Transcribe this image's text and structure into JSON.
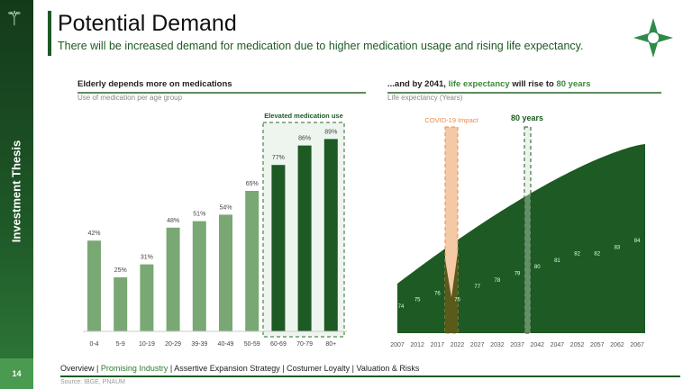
{
  "sidebar": {
    "section": "Investment Thesis",
    "page": "14",
    "logo_icon": "winged-staff-icon"
  },
  "header": {
    "title": "Potential Demand",
    "subtitle": "There will be increased demand for medication due to higher medication usage and rising life expectancy.",
    "brand_icon": "star-cross-logo-icon"
  },
  "left": {
    "heading": "Elderly depends more on medications",
    "caption": "Use of medication per age group",
    "highlight_label": "Elevated medication use"
  },
  "right": {
    "heading_pre": "...and by 2041, ",
    "heading_hl": "life expectancy",
    "heading_mid": " will rise to ",
    "heading_hl2": "80 years",
    "caption": "Life expectancy (Years)",
    "covid_label": "COVID-19 Impact",
    "marker_label": "80 years"
  },
  "chart_data": [
    {
      "type": "bar",
      "categories": [
        "0-4",
        "5-9",
        "10-19",
        "20-29",
        "39-39",
        "40-49",
        "50-59",
        "60-69",
        "70-79",
        "80+"
      ],
      "values": [
        42,
        25,
        31,
        48,
        51,
        54,
        65,
        77,
        86,
        89
      ],
      "unit": "%",
      "highlighted": [
        "60-69",
        "70-79",
        "80+"
      ],
      "colors": {
        "normal": "#7aa874",
        "highlighted": "#1d5a24"
      }
    },
    {
      "type": "area",
      "x": [
        2007,
        2012,
        2017,
        2022,
        2027,
        2032,
        2037,
        2042,
        2047,
        2052,
        2057,
        2062,
        2067
      ],
      "values": [
        74,
        75,
        76,
        75,
        77,
        78,
        79,
        80,
        81,
        82,
        82,
        83,
        84
      ],
      "color": "#1d5a24",
      "annotations": [
        {
          "label": "COVID-19 Impact",
          "x": 2021,
          "color": "#f0a070"
        },
        {
          "label": "80 years",
          "x": 2041
        }
      ]
    }
  ],
  "footer": {
    "nav": [
      {
        "label": "Overview",
        "active": false
      },
      {
        "label": "Promising Industry",
        "active": true
      },
      {
        "label": "Assertive Expansion Strategy",
        "active": false
      },
      {
        "label": "Costumer Loyalty",
        "active": false
      },
      {
        "label": "Valuation & Risks",
        "active": false
      }
    ],
    "source": "Source: IBGE, PNAUM"
  }
}
